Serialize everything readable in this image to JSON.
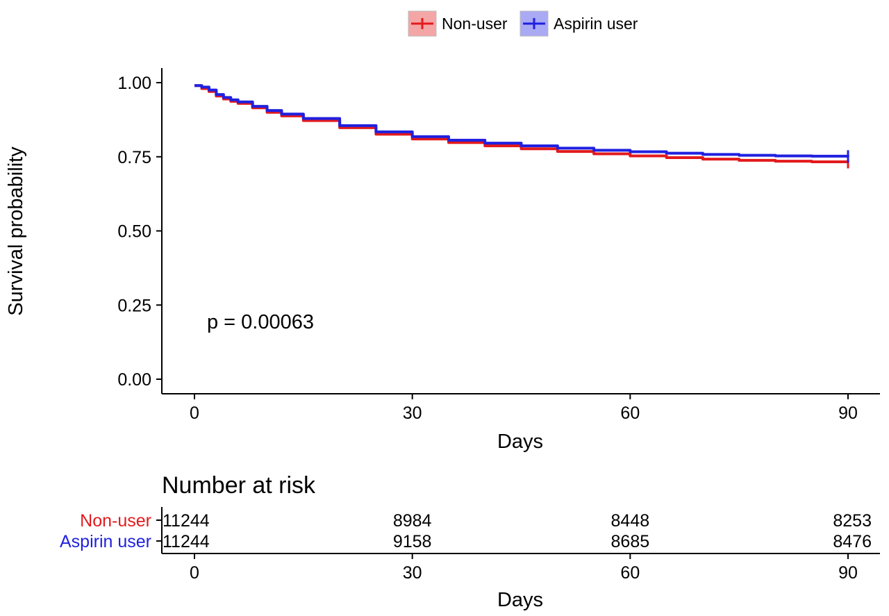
{
  "chart_data": {
    "type": "line",
    "subtype": "kaplan-meier",
    "xlabel": "Days",
    "ylabel": "Survival probability",
    "xlim": [
      0,
      90
    ],
    "ylim": [
      0,
      1
    ],
    "x_ticks": [
      0,
      30,
      60,
      90
    ],
    "x_tick_labels": [
      "0",
      "30",
      "60",
      "90"
    ],
    "y_ticks": [
      0,
      0.25,
      0.5,
      0.75,
      1.0
    ],
    "y_tick_labels": [
      "0.00",
      "0.25",
      "0.50",
      "0.75",
      "1.00"
    ],
    "grid": false,
    "legend_position": "top",
    "annotation": "p = 0.00063",
    "series": [
      {
        "name": "Non-user",
        "color": "#e31a1c",
        "x": [
          0,
          1,
          2,
          3,
          4,
          5,
          6,
          8,
          10,
          12,
          15,
          20,
          25,
          30,
          35,
          40,
          45,
          50,
          55,
          60,
          65,
          70,
          75,
          80,
          85,
          90
        ],
        "y": [
          0.99,
          0.98,
          0.97,
          0.955,
          0.945,
          0.937,
          0.93,
          0.915,
          0.9,
          0.888,
          0.872,
          0.848,
          0.826,
          0.81,
          0.798,
          0.787,
          0.777,
          0.768,
          0.76,
          0.753,
          0.747,
          0.742,
          0.738,
          0.735,
          0.733,
          0.732
        ]
      },
      {
        "name": "Aspirin user",
        "color": "#2020e0",
        "x": [
          0,
          1,
          2,
          3,
          4,
          5,
          6,
          8,
          10,
          12,
          15,
          20,
          25,
          30,
          35,
          40,
          45,
          50,
          55,
          60,
          65,
          70,
          75,
          80,
          85,
          90
        ],
        "y": [
          0.99,
          0.985,
          0.975,
          0.96,
          0.95,
          0.942,
          0.935,
          0.92,
          0.906,
          0.894,
          0.879,
          0.855,
          0.834,
          0.818,
          0.806,
          0.796,
          0.787,
          0.779,
          0.772,
          0.767,
          0.762,
          0.758,
          0.755,
          0.753,
          0.752,
          0.751
        ]
      }
    ],
    "risk_table": {
      "title": "Number at risk",
      "xlabel": "Days",
      "x": [
        0,
        30,
        60,
        90
      ],
      "rows": [
        {
          "name": "Non-user",
          "color": "#e31a1c",
          "values": [
            "11244",
            "8984",
            "8448",
            "8253"
          ]
        },
        {
          "name": "Aspirin user",
          "color": "#2020e0",
          "values": [
            "11244",
            "9158",
            "8685",
            "8476"
          ]
        }
      ]
    }
  }
}
